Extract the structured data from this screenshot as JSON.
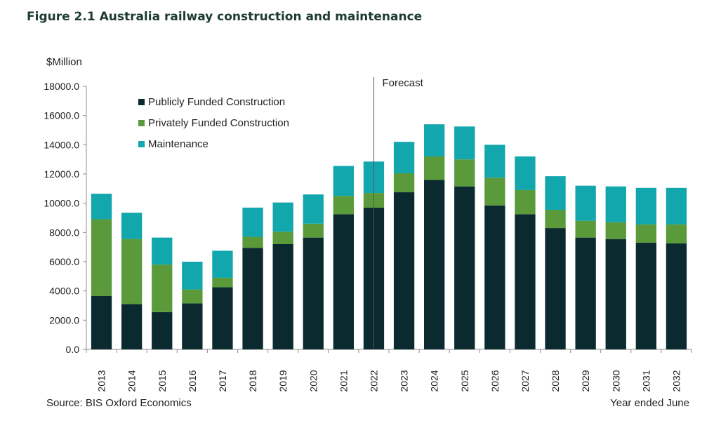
{
  "figure_title": "Figure 2.1 Australia railway construction and maintenance",
  "source": "Source: BIS Oxford Economics",
  "chart_data": {
    "type": "bar",
    "stacked": true,
    "ylabel": "$Million",
    "xlabel": "Year ended June",
    "ylim": [
      0,
      18000
    ],
    "yticks": [
      "0.0",
      "2000.0",
      "4000.0",
      "6000.0",
      "8000.0",
      "10000.0",
      "12000.0",
      "14000.0",
      "16000.0",
      "18000.0"
    ],
    "grid": false,
    "legend_position": "top-left",
    "forecast_label": "Forecast",
    "forecast_after": "2022",
    "categories": [
      "2013",
      "2014",
      "2015",
      "2016",
      "2017",
      "2018",
      "2019",
      "2020",
      "2021",
      "2022",
      "2023",
      "2024",
      "2025",
      "2026",
      "2027",
      "2028",
      "2029",
      "2030",
      "2031",
      "2032"
    ],
    "series": [
      {
        "name": "Publicly Funded Construction",
        "color": "#0b2a30",
        "values": [
          3650,
          3100,
          2550,
          3150,
          4250,
          6950,
          7200,
          7650,
          9250,
          9700,
          10750,
          11600,
          11150,
          9850,
          9250,
          8300,
          7650,
          7550,
          7300,
          7250
        ]
      },
      {
        "name": "Privately Funded Construction",
        "color": "#5a9a3a",
        "values": [
          5250,
          4450,
          3250,
          950,
          650,
          750,
          850,
          950,
          1250,
          1000,
          1300,
          1600,
          1850,
          1900,
          1650,
          1250,
          1150,
          1150,
          1250,
          1300
        ]
      },
      {
        "name": "Maintenance",
        "color": "#12a6ad",
        "values": [
          1750,
          1800,
          1850,
          1900,
          1850,
          2000,
          2000,
          2000,
          2050,
          2150,
          2150,
          2200,
          2250,
          2250,
          2300,
          2300,
          2400,
          2450,
          2500,
          2500
        ]
      }
    ]
  }
}
